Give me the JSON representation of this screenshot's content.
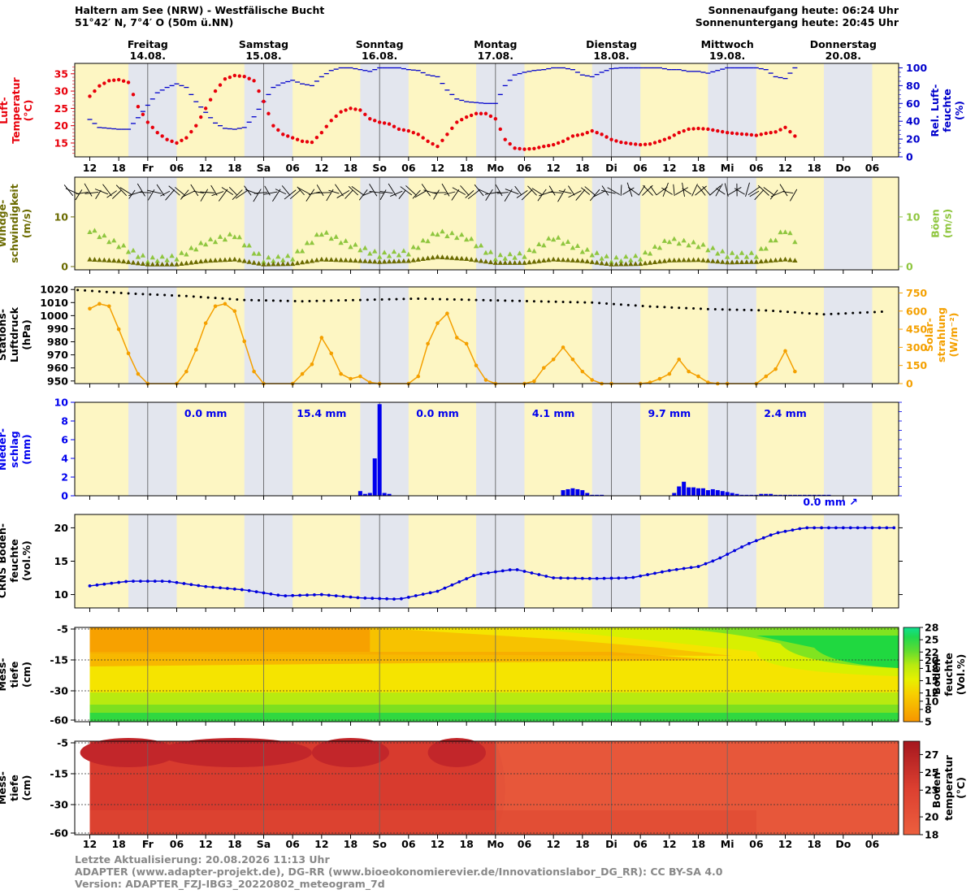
{
  "header": {
    "station": "Haltern am See (NRW) - Westfälische Bucht",
    "coords": "51°42′ N, 7°4′ O (50m ü.NN)",
    "sunrise": "Sonnenaufgang heute: 06:24 Uhr",
    "sunset": "Sonnenuntergang heute: 20:45 Uhr"
  },
  "days": [
    {
      "name": "Freitag",
      "date": "14.08."
    },
    {
      "name": "Samstag",
      "date": "15.08."
    },
    {
      "name": "Sonntag",
      "date": "16.08."
    },
    {
      "name": "Montag",
      "date": "17.08."
    },
    {
      "name": "Dienstag",
      "date": "18.08."
    },
    {
      "name": "Mittwoch",
      "date": "19.08."
    },
    {
      "name": "Donnerstag",
      "date": "20.08."
    }
  ],
  "time_axis": {
    "start_hour": 8,
    "end_hour": 158,
    "midnights": [
      24,
      48,
      72,
      96,
      120,
      144
    ],
    "tick_labels": [
      {
        "h": 12,
        "t": "12"
      },
      {
        "h": 18,
        "t": "18"
      },
      {
        "h": 24,
        "t": "Fr"
      },
      {
        "h": 30,
        "t": "06"
      },
      {
        "h": 36,
        "t": "12"
      },
      {
        "h": 42,
        "t": "18"
      },
      {
        "h": 48,
        "t": "Sa"
      },
      {
        "h": 54,
        "t": "06"
      },
      {
        "h": 60,
        "t": "12"
      },
      {
        "h": 66,
        "t": "18"
      },
      {
        "h": 72,
        "t": "So"
      },
      {
        "h": 78,
        "t": "06"
      },
      {
        "h": 84,
        "t": "12"
      },
      {
        "h": 90,
        "t": "18"
      },
      {
        "h": 96,
        "t": "Mo"
      },
      {
        "h": 102,
        "t": "06"
      },
      {
        "h": 108,
        "t": "12"
      },
      {
        "h": 114,
        "t": "18"
      },
      {
        "h": 120,
        "t": "Di"
      },
      {
        "h": 126,
        "t": "06"
      },
      {
        "h": 132,
        "t": "12"
      },
      {
        "h": 138,
        "t": "18"
      },
      {
        "h": 144,
        "t": "Mi"
      },
      {
        "h": 150,
        "t": "06"
      },
      {
        "h": 156,
        "t": "12"
      },
      {
        "h": 162,
        "t": "18"
      },
      {
        "h": 168,
        "t": "Do"
      },
      {
        "h": 174,
        "t": "06"
      }
    ]
  },
  "panels": {
    "temp": {
      "ylabel_left": [
        "Luft-",
        "Temperatur",
        "(°C)"
      ],
      "ylabel_right": [
        "Rel. Luft-",
        "feuchte",
        "(%)"
      ],
      "left_ticks": [
        "15",
        "20",
        "25",
        "30",
        "35"
      ],
      "right_ticks": [
        "0",
        "20",
        "40",
        "60",
        "80",
        "100"
      ]
    },
    "wind": {
      "ylabel_left": [
        "Windge-",
        "schwindigkeit",
        "(m/s)"
      ],
      "ylabel_right": [
        "Böen",
        "(m/s)"
      ],
      "left_ticks": [
        "0",
        "10"
      ],
      "right_ticks": [
        "0",
        "10"
      ]
    },
    "pressure": {
      "ylabel_left": [
        "Stations-",
        "Luftdruck",
        "(hPa)"
      ],
      "ylabel_right": [
        "Solar-",
        "strahlung",
        "(W/m⁻²)"
      ],
      "left_ticks": [
        "950",
        "960",
        "970",
        "980",
        "990",
        "1000",
        "1010",
        "1020"
      ],
      "right_ticks": [
        "0",
        "150",
        "300",
        "450",
        "600",
        "750"
      ]
    },
    "precip": {
      "ylabel_left": [
        "Nieder-",
        "schlag",
        "(mm)"
      ],
      "left_ticks": [
        "0",
        "2",
        "4",
        "6",
        "8",
        "10"
      ],
      "daily_sums": [
        "0.0 mm",
        "15.4 mm",
        "0.0 mm",
        "4.1 mm",
        "9.7 mm",
        "2.4 mm"
      ],
      "last_sum": "0.0 mm ↗"
    },
    "crns": {
      "ylabel_left": [
        "CRNS Boden-",
        "feuchte",
        "(vol.%)"
      ],
      "left_ticks": [
        "10",
        "15",
        "20"
      ]
    },
    "soilmoist": {
      "ylabel_left": [
        "Mess-",
        "tiefe",
        "(cm)"
      ],
      "depth_ticks": [
        "-5",
        "-15",
        "-30",
        "-60"
      ],
      "cbar_label": [
        "Boden-",
        "feuchte",
        "(Vol.%)"
      ],
      "cbar_ticks": [
        "5",
        "8",
        "10",
        "12",
        "15",
        "18",
        "20",
        "22",
        "25",
        "28"
      ]
    },
    "soiltemp": {
      "ylabel_left": [
        "Mess-",
        "tiefe",
        "(cm)"
      ],
      "depth_ticks": [
        "-5",
        "-15",
        "-30",
        "-60"
      ],
      "cbar_label": [
        "Boden-",
        "temperatur",
        "(°C)"
      ],
      "cbar_ticks": [
        "18",
        "20",
        "23",
        "25",
        "27"
      ]
    }
  },
  "chart_data": [
    {
      "type": "line",
      "name": "air-temperature",
      "x_hours": [
        12,
        14,
        16,
        18,
        20,
        22,
        24,
        26,
        28,
        30,
        32,
        34,
        36,
        38,
        40,
        42,
        44,
        46,
        48,
        50,
        52,
        54,
        56,
        58,
        60,
        62,
        64,
        66,
        68,
        70,
        72,
        74,
        76,
        78,
        80,
        82,
        84,
        86,
        88,
        90,
        92,
        94,
        96,
        98,
        100,
        102,
        104,
        106,
        108,
        110,
        112,
        114,
        116,
        118,
        120,
        122,
        124,
        126,
        128,
        130,
        132,
        134,
        136,
        138,
        140,
        142,
        144,
        146,
        148,
        150,
        152,
        154,
        156,
        158
      ],
      "values": [
        28.5,
        31.5,
        33,
        33.3,
        32.5,
        25.5,
        21,
        18,
        16,
        15,
        16.5,
        20,
        25,
        30,
        33.5,
        34.5,
        34.2,
        33,
        27,
        20,
        17.5,
        16.5,
        15.5,
        15.2,
        18,
        21.5,
        24,
        25,
        24.5,
        22,
        21,
        20.5,
        19,
        18.5,
        17.5,
        15.5,
        14,
        17.5,
        21,
        22.5,
        23.5,
        23.5,
        22,
        16,
        13.5,
        13.2,
        13.4,
        14,
        14.5,
        15.5,
        17,
        17.5,
        18.5,
        17.5,
        16,
        15.2,
        14.8,
        14.5,
        14.7,
        15.5,
        16.5,
        18,
        19,
        19.2,
        19,
        18.5,
        18,
        17.7,
        17.5,
        17.2,
        17.8,
        18.2,
        19.5,
        17
      ],
      "ylim": [
        11,
        38
      ]
    },
    {
      "type": "line",
      "name": "relative-humidity",
      "x_hours": [
        12,
        14,
        16,
        18,
        20,
        22,
        24,
        26,
        28,
        30,
        32,
        34,
        36,
        38,
        40,
        42,
        44,
        46,
        48,
        50,
        52,
        54,
        56,
        58,
        60,
        62,
        64,
        66,
        68,
        70,
        72,
        74,
        76,
        78,
        80,
        82,
        84,
        86,
        88,
        90,
        92,
        94,
        96,
        98,
        100,
        102,
        104,
        106,
        108,
        110,
        112,
        114,
        116,
        118,
        120,
        122,
        124,
        126,
        128,
        130,
        132,
        134,
        136,
        138,
        140,
        142,
        144,
        146,
        148,
        150,
        152,
        154,
        156,
        158
      ],
      "values": [
        42,
        33,
        32,
        31,
        31,
        44,
        58,
        72,
        78,
        82,
        78,
        62,
        50,
        38,
        32,
        31,
        33,
        45,
        62,
        78,
        83,
        86,
        82,
        80,
        90,
        97,
        100,
        100,
        98,
        96,
        100,
        100,
        100,
        98,
        97,
        92,
        90,
        75,
        65,
        62,
        61,
        60,
        60,
        80,
        92,
        95,
        97,
        98,
        100,
        100,
        98,
        92,
        90,
        95,
        99,
        100,
        100,
        100,
        100,
        100,
        98,
        98,
        96,
        96,
        94,
        97,
        100,
        100,
        100,
        100,
        98,
        90,
        88,
        100
      ],
      "ylim": [
        0,
        105
      ]
    },
    {
      "type": "scatter",
      "name": "wind-speed",
      "x_hours": [
        12,
        18,
        24,
        30,
        36,
        42,
        48,
        54,
        60,
        66,
        72,
        78,
        84,
        90,
        96,
        102,
        108,
        114,
        120,
        126,
        132,
        138,
        144,
        150,
        156,
        158
      ],
      "values": [
        1.5,
        1.2,
        0.5,
        0.5,
        1.2,
        1.5,
        0.5,
        0.6,
        1.5,
        1.3,
        1,
        1.2,
        2,
        1.6,
        0.8,
        0.8,
        1.5,
        1.2,
        0.5,
        0.6,
        1.3,
        1.4,
        0.9,
        1,
        1.5,
        0.8
      ],
      "ylim": [
        0,
        18
      ]
    },
    {
      "type": "scatter",
      "name": "gusts",
      "x_hours": [
        12,
        18,
        24,
        30,
        36,
        42,
        48,
        54,
        60,
        66,
        72,
        78,
        84,
        90,
        96,
        102,
        108,
        114,
        120,
        126,
        132,
        138,
        144,
        150,
        156,
        158
      ],
      "values": [
        7,
        4,
        1,
        1.5,
        4.5,
        6,
        1,
        1.5,
        6.5,
        4,
        2,
        2.5,
        6.5,
        5.5,
        1.5,
        2,
        5.5,
        3,
        1,
        1.5,
        5,
        4,
        2,
        2,
        7,
        1
      ],
      "ylim": [
        0,
        18
      ]
    },
    {
      "type": "line",
      "name": "station-pressure",
      "x_hours": [
        8,
        20,
        32,
        44,
        56,
        68,
        80,
        92,
        104,
        116,
        128,
        140,
        152,
        164,
        176
      ],
      "values": [
        1020,
        1017,
        1015,
        1012,
        1011,
        1012,
        1013,
        1012,
        1011,
        1010,
        1007,
        1005,
        1004,
        1001,
        1003
      ],
      "ylim": [
        948,
        1022
      ]
    },
    {
      "type": "line",
      "name": "solar-radiation",
      "x_hours": [
        12,
        14,
        16,
        18,
        20,
        22,
        24,
        30,
        32,
        34,
        36,
        38,
        40,
        42,
        44,
        46,
        48,
        54,
        56,
        58,
        60,
        62,
        64,
        66,
        68,
        70,
        72,
        78,
        80,
        82,
        84,
        86,
        88,
        90,
        92,
        94,
        96,
        102,
        104,
        106,
        108,
        110,
        112,
        114,
        116,
        118,
        120,
        126,
        128,
        130,
        132,
        134,
        136,
        138,
        140,
        142,
        144,
        150,
        152,
        154,
        156,
        158
      ],
      "values": [
        620,
        660,
        640,
        450,
        250,
        80,
        0,
        0,
        100,
        280,
        500,
        640,
        660,
        600,
        350,
        100,
        0,
        0,
        80,
        160,
        380,
        250,
        80,
        40,
        60,
        10,
        0,
        0,
        60,
        330,
        500,
        580,
        380,
        330,
        150,
        30,
        0,
        0,
        20,
        130,
        200,
        300,
        200,
        100,
        30,
        0,
        0,
        0,
        10,
        40,
        80,
        200,
        100,
        60,
        10,
        0,
        0,
        0,
        60,
        120,
        270,
        100
      ],
      "ylim": [
        0,
        800
      ]
    },
    {
      "type": "bar",
      "name": "precipitation",
      "x_hours": [
        68,
        69,
        70,
        71,
        72,
        73,
        74,
        110,
        111,
        112,
        113,
        114,
        115,
        116,
        117,
        118,
        133,
        134,
        135,
        136,
        137,
        138,
        139,
        140,
        141,
        142,
        143,
        144,
        145,
        146,
        147,
        148,
        149,
        150,
        151,
        152,
        153,
        154,
        155,
        156,
        157,
        158,
        159,
        160,
        161,
        162,
        163,
        164,
        165
      ],
      "values": [
        0.5,
        0.2,
        0.3,
        4,
        9.8,
        0.3,
        0.2,
        0.6,
        0.7,
        0.8,
        0.7,
        0.6,
        0.3,
        0.1,
        0.1,
        0.1,
        0.3,
        1,
        1.5,
        0.9,
        0.9,
        0.8,
        0.8,
        0.6,
        0.7,
        0.6,
        0.5,
        0.4,
        0.3,
        0.2,
        0.1,
        0.1,
        0.1,
        0.1,
        0.2,
        0.2,
        0.2,
        0.1,
        0.1,
        0.1,
        0.1,
        0.1,
        0.1,
        0.1,
        0.1,
        0.1,
        0.1,
        0.1,
        0.1
      ],
      "ylim": [
        0,
        10
      ]
    },
    {
      "type": "line",
      "name": "crns-soil-moisture",
      "x_hours": [
        12,
        20,
        28,
        36,
        44,
        52,
        60,
        68,
        76,
        84,
        92,
        100,
        108,
        116,
        124,
        132,
        138,
        142,
        148,
        154,
        160,
        166,
        172,
        178
      ],
      "values": [
        11.3,
        12,
        12,
        11.2,
        10.7,
        9.8,
        10,
        9.5,
        9.3,
        10.5,
        13,
        13.8,
        12.5,
        12.4,
        12.5,
        13.6,
        14.2,
        15.3,
        17.5,
        19.2,
        20,
        20,
        20,
        20
      ],
      "ylim": [
        8,
        22
      ]
    },
    {
      "type": "heatmap",
      "name": "soil-moisture-depth",
      "depths": [
        -5,
        -15,
        -30,
        -60
      ],
      "value_range": [
        5,
        28
      ]
    },
    {
      "type": "heatmap",
      "name": "soil-temperature-depth",
      "depths": [
        -5,
        -15,
        -30,
        -60
      ],
      "value_range": [
        18,
        28
      ]
    }
  ],
  "footer": {
    "updated": "Letzte Aktualisierung: 20.08.2026 11:13 Uhr",
    "credits": "ADAPTER (www.adapter-projekt.de), DG-RR (www.bioeokonomierevier.de/Innovationslabor_DG_RR): CC BY-SA 4.0",
    "version": "Version: ADAPTER_FZJ-IBG3_20220802_meteogram_7d"
  },
  "colors": {
    "day": "#fdf6c3",
    "night": "#e3e6ee",
    "twilight": "#eef0f3",
    "temp": "#e8000b",
    "humidity": "#0000cc",
    "wind": "#6b6b00",
    "gust": "#8fc63f",
    "pressure": "#000000",
    "solar": "#f4a000",
    "precip": "#0000ee",
    "crns": "#0000dd",
    "label_temp": "#e8000b",
    "label_hum": "#0000cc",
    "label_wind": "#6b6b00",
    "label_gust": "#8fc63f",
    "label_solar": "#f4a000",
    "label_precip": "#0000ee"
  }
}
